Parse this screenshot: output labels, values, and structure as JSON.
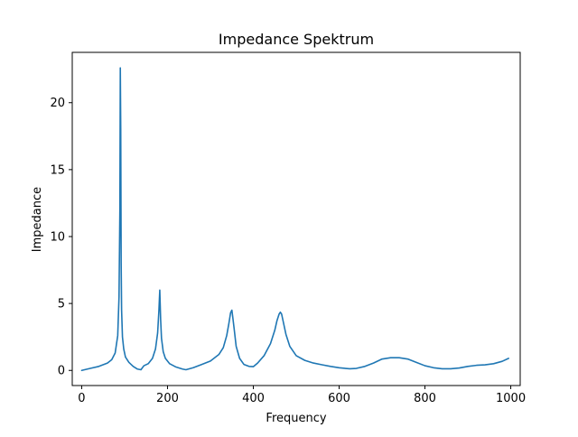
{
  "chart_data": {
    "type": "line",
    "title": "Impedance Spektrum",
    "xlabel": "Frequency",
    "ylabel": "Impedance",
    "xlim": [
      -22,
      1022
    ],
    "ylim": [
      -1.13,
      23.76
    ],
    "xticks": [
      0,
      200,
      400,
      600,
      800,
      1000
    ],
    "yticks": [
      0,
      5,
      10,
      15,
      20
    ],
    "grid": false,
    "series": [
      {
        "color": "#1f77b4",
        "x": [
          0,
          20,
          40,
          60,
          70,
          78,
          84,
          87,
          89,
          90,
          91,
          92,
          93,
          95,
          98,
          102,
          110,
          120,
          130,
          138,
          145,
          155,
          165,
          172,
          177,
          180,
          182,
          184,
          186,
          190,
          195,
          205,
          220,
          235,
          243,
          260,
          280,
          300,
          320,
          330,
          338,
          343,
          347,
          350,
          352,
          355,
          360,
          368,
          378,
          390,
          400,
          410,
          425,
          440,
          450,
          455,
          460,
          463,
          466,
          470,
          476,
          485,
          500,
          520,
          540,
          560,
          580,
          600,
          615,
          625,
          640,
          660,
          680,
          700,
          720,
          740,
          760,
          780,
          800,
          820,
          840,
          860,
          880,
          900,
          920,
          940,
          960,
          980,
          995
        ],
        "y": [
          0.0,
          0.15,
          0.3,
          0.55,
          0.8,
          1.3,
          2.6,
          5.5,
          12.0,
          22.6,
          18.0,
          8.0,
          4.5,
          2.5,
          1.6,
          1.0,
          0.6,
          0.3,
          0.1,
          0.05,
          0.35,
          0.5,
          0.9,
          1.6,
          2.8,
          4.5,
          6.0,
          3.8,
          2.4,
          1.4,
          0.9,
          0.5,
          0.25,
          0.1,
          0.05,
          0.2,
          0.45,
          0.7,
          1.2,
          1.7,
          2.6,
          3.5,
          4.3,
          4.5,
          4.0,
          3.2,
          1.8,
          0.9,
          0.45,
          0.3,
          0.28,
          0.55,
          1.1,
          2.0,
          3.0,
          3.7,
          4.2,
          4.35,
          4.2,
          3.6,
          2.7,
          1.8,
          1.1,
          0.75,
          0.55,
          0.42,
          0.3,
          0.2,
          0.15,
          0.12,
          0.15,
          0.3,
          0.55,
          0.85,
          0.95,
          0.95,
          0.85,
          0.6,
          0.35,
          0.2,
          0.12,
          0.12,
          0.18,
          0.3,
          0.38,
          0.42,
          0.5,
          0.68,
          0.9
        ]
      }
    ]
  }
}
